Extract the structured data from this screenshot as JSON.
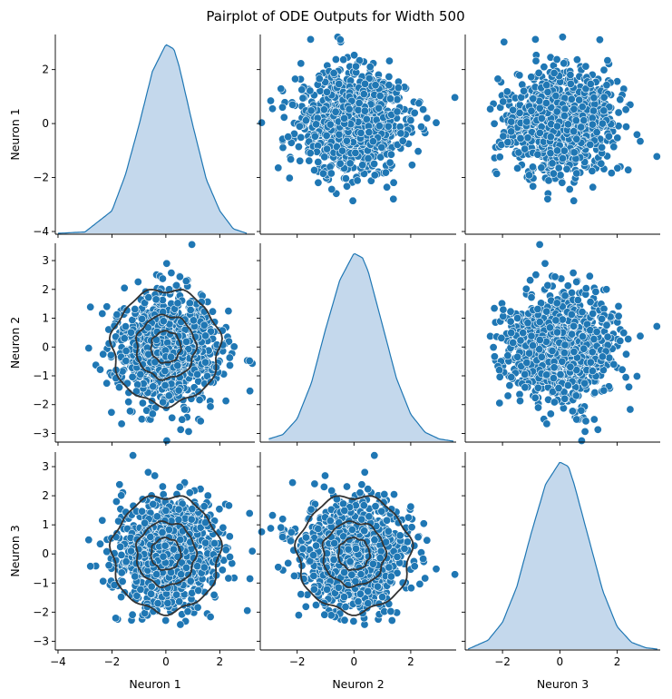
{
  "chart_data": {
    "type": "pairplot",
    "title": "Pairplot of ODE Outputs for Width 500",
    "variables": [
      "Neuron 1",
      "Neuron 2",
      "Neuron 3"
    ],
    "n_points_approx": 1000,
    "distribution": "approximately standard normal, independent",
    "colors": {
      "points": "#1f77b4",
      "point_edge": "#ffffff",
      "kde_fill": "#c4d8ec",
      "kde_line": "#1f77b4",
      "contour": "#333333"
    },
    "axis_ranges": {
      "Neuron 1": [
        -4.1,
        3.3
      ],
      "Neuron 2": [
        -3.3,
        3.6
      ],
      "Neuron 3": [
        -3.3,
        3.5
      ]
    },
    "ticks": {
      "Neuron 1": [
        -4,
        -2,
        0,
        2
      ],
      "Neuron 2": [
        -3,
        -2,
        -1,
        0,
        1,
        2,
        3
      ],
      "Neuron 3": [
        -3,
        -2,
        -1,
        0,
        1,
        2,
        3
      ]
    },
    "x_ticks": {
      "Neuron 1": [
        -4,
        -2,
        0,
        2
      ],
      "Neuron 2": [
        -2,
        0,
        2
      ],
      "Neuron 3": [
        -2,
        0,
        2
      ]
    },
    "diagonal": "kde",
    "upper": "scatter",
    "lower": "scatter with kde contours",
    "contour_levels": [
      {
        "level": "outer",
        "radius": 2.0
      },
      {
        "level": "middle",
        "radius": 1.1
      },
      {
        "level": "inner",
        "radius": 0.55
      }
    ],
    "kde": {
      "Neuron 1": {
        "x": [
          -4.0,
          -3.0,
          -2.0,
          -1.5,
          -1.0,
          -0.5,
          0.0,
          0.3,
          0.5,
          1.0,
          1.5,
          2.0,
          2.5,
          3.0
        ],
        "density": [
          0.0,
          0.003,
          0.05,
          0.13,
          0.24,
          0.36,
          0.42,
          0.41,
          0.37,
          0.24,
          0.12,
          0.05,
          0.01,
          0.0
        ]
      },
      "Neuron 2": {
        "x": [
          -3.0,
          -2.5,
          -2.0,
          -1.5,
          -1.0,
          -0.5,
          0.0,
          0.3,
          0.5,
          1.0,
          1.5,
          2.0,
          2.5,
          3.0,
          3.5
        ],
        "density": [
          0.005,
          0.015,
          0.05,
          0.13,
          0.25,
          0.36,
          0.42,
          0.41,
          0.38,
          0.26,
          0.14,
          0.06,
          0.02,
          0.005,
          0.0
        ]
      },
      "Neuron 3": {
        "x": [
          -3.2,
          -2.5,
          -2.0,
          -1.5,
          -1.0,
          -0.5,
          0.0,
          0.3,
          0.5,
          1.0,
          1.5,
          2.0,
          2.5,
          3.0,
          3.4
        ],
        "density": [
          0.0,
          0.02,
          0.06,
          0.14,
          0.26,
          0.37,
          0.42,
          0.41,
          0.37,
          0.25,
          0.13,
          0.05,
          0.015,
          0.003,
          0.0
        ]
      }
    }
  }
}
